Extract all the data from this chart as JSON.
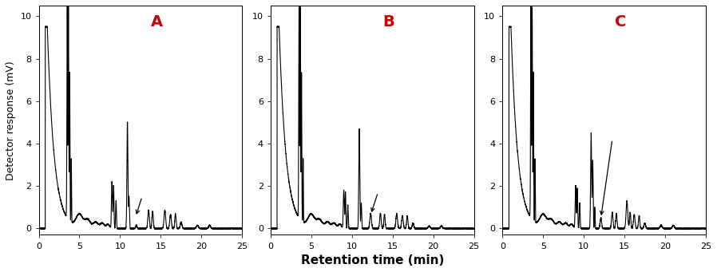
{
  "panels": [
    "A",
    "B",
    "C"
  ],
  "panel_label_color": "#cc0000",
  "panel_label_fontsize": 14,
  "xlim": [
    0,
    25
  ],
  "ylim": [
    -0.3,
    10.5
  ],
  "yticks": [
    0,
    2,
    4,
    6,
    8,
    10
  ],
  "xticks": [
    0,
    5,
    10,
    15,
    20,
    25
  ],
  "xlabel": "Retention time (min)",
  "ylabel": "Detector response (mV)",
  "xlabel_fontsize": 11,
  "ylabel_fontsize": 9,
  "tick_fontsize": 8,
  "line_color": "#000000",
  "line_width": 0.8,
  "background_color": "#ffffff",
  "figsize": [
    8.98,
    3.41
  ],
  "dpi": 100
}
